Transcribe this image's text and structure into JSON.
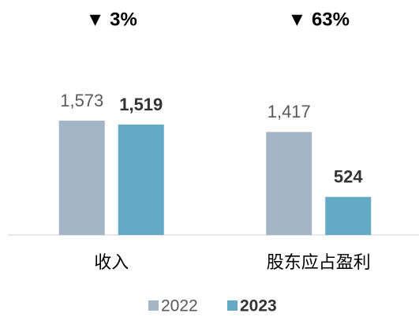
{
  "chart_data": {
    "type": "bar",
    "annotations": [
      "▼ 3%",
      "▼ 63%"
    ],
    "categories": [
      "收入",
      "股东应占盈利"
    ],
    "series": [
      {
        "name": "2022",
        "color": "#a3b5c7",
        "values": [
          1573,
          1417
        ],
        "value_labels": [
          "1,573",
          "1,417"
        ]
      },
      {
        "name": "2023",
        "color": "#64a9c5",
        "values": [
          1519,
          524
        ],
        "value_labels": [
          "1,519",
          "524"
        ]
      }
    ],
    "ylim": [
      0,
      2000
    ],
    "legend": "bottom"
  }
}
